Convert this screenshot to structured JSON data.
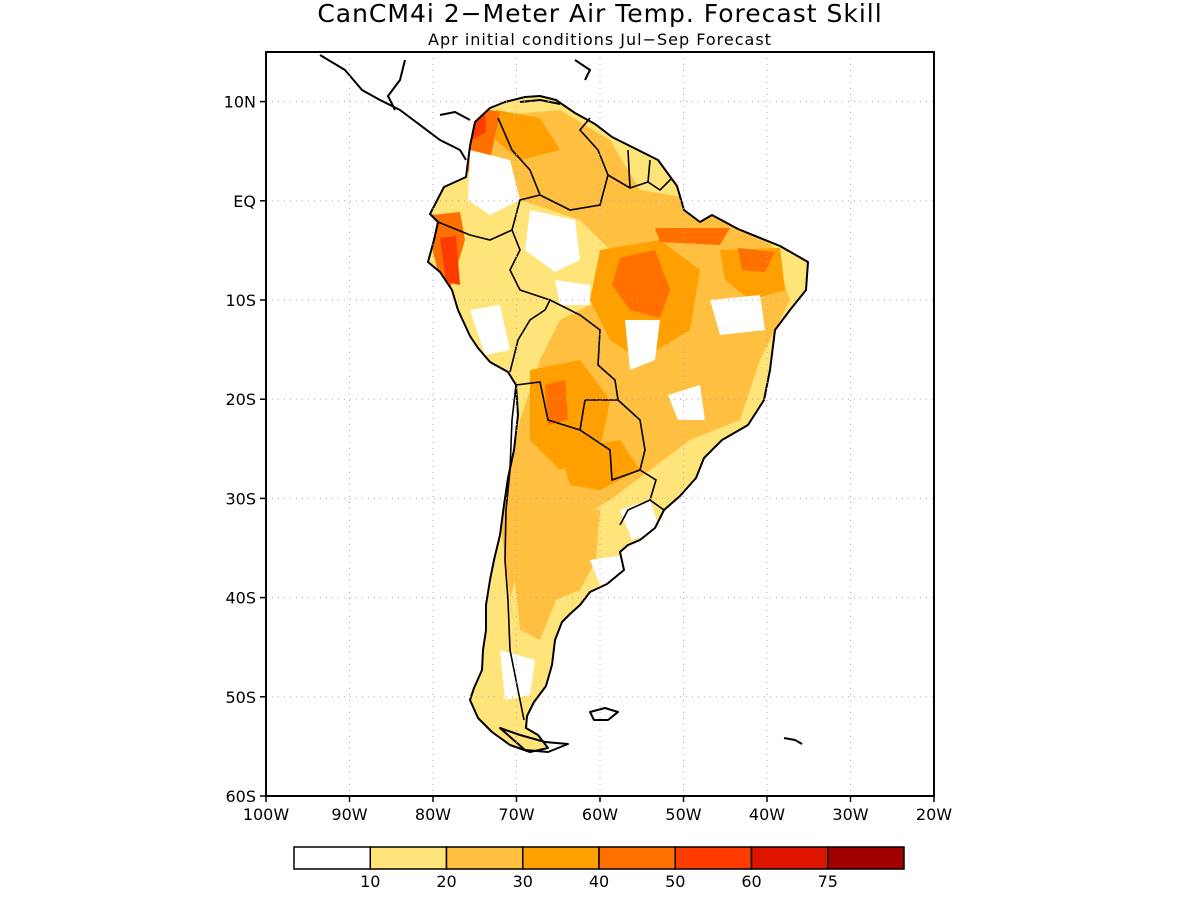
{
  "title": "CanCM4i 2−Meter Air Temp. Forecast Skill",
  "subtitle": "Apr initial conditions  Jul−Sep Forecast",
  "map": {
    "region": "South America",
    "lon_range": [
      -100,
      -20
    ],
    "lat_range": [
      -60,
      15
    ],
    "grid": "dotted",
    "lat_ticks": [
      {
        "value": 10,
        "label": "10N"
      },
      {
        "value": 0,
        "label": "EQ"
      },
      {
        "value": -10,
        "label": "10S"
      },
      {
        "value": -20,
        "label": "20S"
      },
      {
        "value": -30,
        "label": "30S"
      },
      {
        "value": -40,
        "label": "40S"
      },
      {
        "value": -50,
        "label": "50S"
      },
      {
        "value": -60,
        "label": "60S"
      }
    ],
    "lon_ticks": [
      {
        "value": -100,
        "label": "100W"
      },
      {
        "value": -90,
        "label": "90W"
      },
      {
        "value": -80,
        "label": "80W"
      },
      {
        "value": -70,
        "label": "70W"
      },
      {
        "value": -60,
        "label": "60W"
      },
      {
        "value": -50,
        "label": "50W"
      },
      {
        "value": -40,
        "label": "40W"
      },
      {
        "value": -30,
        "label": "30W"
      },
      {
        "value": -20,
        "label": "20W"
      }
    ]
  },
  "colorbar": {
    "colors": [
      "#ffffff",
      "#ffe47a",
      "#ffbf40",
      "#ffa000",
      "#ff7000",
      "#ff3c00",
      "#dc1400",
      "#a00000"
    ],
    "labels": [
      "10",
      "20",
      "30",
      "40",
      "50",
      "60",
      "75"
    ]
  }
}
